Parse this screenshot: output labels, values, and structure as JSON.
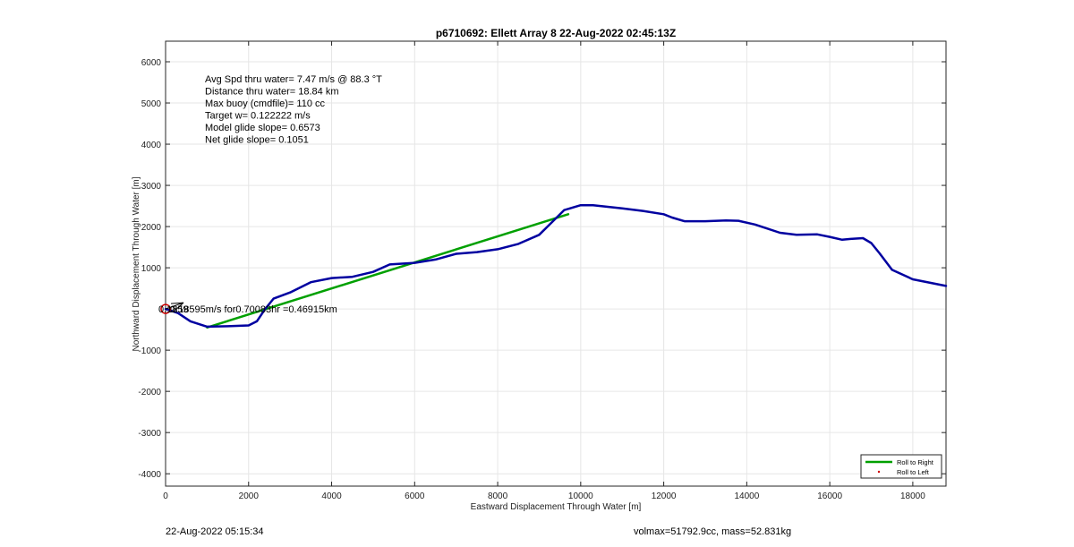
{
  "footer": {
    "timestamp": "22-Aug-2022 05:15:34",
    "volmass": "volmax=51792.9cc, mass=52.831kg"
  },
  "chart_data": {
    "type": "line",
    "title": "p6710692: Ellett Array 8 22-Aug-2022 02:45:13Z",
    "xlabel": "Eastward Displacement Through Water [m]",
    "ylabel": "Northward Displacement Through Water [m]",
    "xlim": [
      0,
      18800
    ],
    "ylim": [
      -4300,
      6500
    ],
    "xticks": [
      0,
      2000,
      4000,
      6000,
      8000,
      10000,
      12000,
      14000,
      16000,
      18000
    ],
    "yticks": [
      -4000,
      -3000,
      -2000,
      -1000,
      1000,
      2000,
      3000,
      4000,
      5000,
      6000
    ],
    "grid": true,
    "legend_position": "bottom-right",
    "annotations": [
      "Avg Spd thru water=  7.47 m/s @  88.3 °T",
      "Distance thru water= 18.84 km",
      "Max buoy (cmdfile)= 110 cc",
      "Target w= 0.122222 m/s",
      "Model glide slope= 0.6573",
      "Net glide slope= 0.1051"
    ],
    "current_label": "0.18595m/s for0.70083hr =0.46915km",
    "current_label_overlap": "0.1859",
    "series": [
      {
        "name": "Roll to Right",
        "color": "#00a000",
        "x": [
          1000,
          9700
        ],
        "y": [
          -450,
          2300
        ]
      },
      {
        "name": "Roll to Left",
        "color": "#d00000",
        "x": [],
        "y": []
      },
      {
        "name": "",
        "color": "#0000a0",
        "x": [
          0,
          300,
          600,
          1000,
          1500,
          2000,
          2200,
          2400,
          2600,
          3000,
          3500,
          4000,
          4500,
          5000,
          5400,
          6000,
          6500,
          7000,
          7500,
          8000,
          8500,
          9000,
          9300,
          9600,
          10000,
          10300,
          11000,
          11500,
          12000,
          12200,
          12500,
          13000,
          13500,
          13800,
          14200,
          14800,
          15200,
          15700,
          16000,
          16300,
          16500,
          16800,
          17000,
          17200,
          17500,
          18000,
          18800
        ],
        "y": [
          0,
          -100,
          -300,
          -430,
          -420,
          -400,
          -300,
          0,
          250,
          400,
          650,
          750,
          780,
          900,
          1080,
          1120,
          1200,
          1340,
          1380,
          1450,
          1580,
          1800,
          2100,
          2400,
          2520,
          2520,
          2440,
          2380,
          2300,
          2220,
          2130,
          2130,
          2150,
          2140,
          2050,
          1850,
          1800,
          1810,
          1750,
          1680,
          1700,
          1720,
          1600,
          1350,
          950,
          720,
          560
        ]
      }
    ],
    "start_marker": {
      "x": 0,
      "y": 0,
      "color": "#d00000",
      "arrow_color": "#000000"
    }
  }
}
